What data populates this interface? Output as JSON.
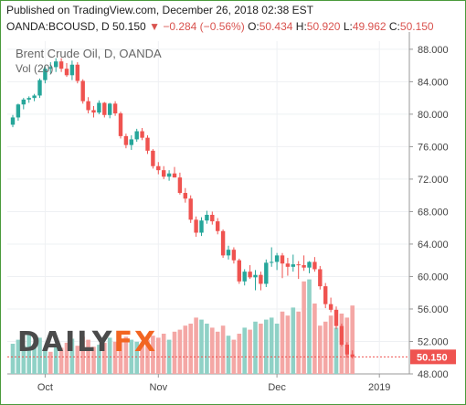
{
  "header": {
    "published": "Published on TradingView.com, December 26, 2018 02:38 EST",
    "symbol": "OANDA:BCOUSD, D",
    "last": "50.150",
    "arrow_icon": "down-triangle-icon",
    "change": "−0.284 (−0.56%)",
    "o_label": "O:",
    "o_value": "50.434",
    "h_label": "H:",
    "h_value": "50.920",
    "l_label": "L:",
    "l_value": "49.962",
    "c_label": "C:",
    "c_value": "50.150"
  },
  "legend": {
    "series_title": "Brent Crude Oil, D, OANDA",
    "volume_label": "Vol (20)"
  },
  "logo": {
    "part1": "DAILY",
    "part2": "FX"
  },
  "colors": {
    "up": "#26a69a",
    "down": "#ef5350",
    "vol_up": "#8fd1c6",
    "vol_down": "#f4a7a5",
    "border": "#4a9a3c",
    "price_tag": "#ef5350"
  },
  "chart_data": {
    "type": "candlestick",
    "title": "Brent Crude Oil, D, OANDA",
    "ylim": [
      48,
      89
    ],
    "y_ticks": [
      "88.000",
      "84.000",
      "80.000",
      "76.000",
      "72.000",
      "68.000",
      "64.000",
      "60.000",
      "56.000",
      "52.000",
      "48.000"
    ],
    "x_ticks": [
      "Oct",
      "Nov",
      "Dec",
      "2019"
    ],
    "last_price_label": "50.150",
    "candles": [
      [
        78.7,
        79.9,
        78.4,
        79.6
      ],
      [
        79.6,
        81.3,
        79.2,
        81.2
      ],
      [
        81.2,
        82.0,
        80.6,
        81.8
      ],
      [
        81.8,
        82.2,
        81.4,
        82.0
      ],
      [
        82.0,
        82.5,
        81.6,
        82.3
      ],
      [
        82.3,
        84.4,
        82.0,
        84.2
      ],
      [
        84.2,
        85.9,
        83.8,
        85.6
      ],
      [
        85.6,
        86.4,
        85.0,
        85.8
      ],
      [
        85.8,
        86.9,
        85.2,
        86.5
      ],
      [
        86.5,
        86.9,
        85.2,
        85.6
      ],
      [
        85.6,
        86.3,
        84.6,
        84.8
      ],
      [
        84.8,
        86.6,
        84.2,
        86.1
      ],
      [
        86.1,
        86.4,
        83.8,
        84.1
      ],
      [
        84.1,
        84.3,
        81.3,
        81.6
      ],
      [
        81.6,
        82.1,
        80.1,
        80.5
      ],
      [
        80.5,
        81.0,
        79.6,
        80.2
      ],
      [
        80.2,
        81.7,
        80.0,
        81.4
      ],
      [
        81.4,
        81.5,
        79.6,
        79.9
      ],
      [
        79.9,
        81.4,
        79.5,
        81.3
      ],
      [
        81.3,
        81.6,
        79.8,
        80.1
      ],
      [
        80.1,
        80.3,
        77.0,
        77.3
      ],
      [
        77.3,
        77.6,
        75.8,
        76.2
      ],
      [
        76.2,
        77.4,
        75.6,
        76.9
      ],
      [
        76.9,
        78.2,
        76.6,
        77.9
      ],
      [
        77.9,
        78.3,
        76.8,
        77.1
      ],
      [
        77.1,
        77.4,
        75.1,
        75.5
      ],
      [
        75.5,
        75.7,
        73.3,
        73.6
      ],
      [
        73.6,
        74.1,
        72.6,
        73.1
      ],
      [
        73.1,
        73.6,
        72.0,
        72.3
      ],
      [
        72.3,
        73.1,
        71.8,
        72.7
      ],
      [
        72.7,
        73.5,
        72.2,
        72.2
      ],
      [
        72.2,
        72.8,
        70.1,
        70.3
      ],
      [
        70.3,
        70.9,
        69.1,
        69.6
      ],
      [
        69.6,
        70.0,
        66.6,
        67.0
      ],
      [
        67.0,
        67.4,
        64.9,
        65.4
      ],
      [
        65.4,
        67.3,
        65.0,
        66.9
      ],
      [
        66.9,
        68.1,
        66.5,
        67.6
      ],
      [
        67.6,
        68.0,
        66.4,
        66.8
      ],
      [
        66.8,
        67.2,
        65.2,
        65.6
      ],
      [
        65.6,
        65.8,
        62.3,
        62.6
      ],
      [
        62.6,
        63.8,
        62.1,
        63.3
      ],
      [
        63.3,
        63.6,
        61.6,
        62.0
      ],
      [
        62.0,
        62.2,
        59.1,
        59.4
      ],
      [
        59.4,
        60.9,
        58.9,
        60.6
      ],
      [
        60.6,
        61.4,
        59.7,
        59.9
      ],
      [
        59.9,
        60.8,
        58.3,
        60.2
      ],
      [
        60.2,
        60.6,
        58.3,
        59.1
      ],
      [
        59.1,
        62.1,
        58.7,
        61.7
      ],
      [
        61.7,
        63.6,
        61.2,
        61.8
      ],
      [
        61.8,
        62.9,
        60.8,
        62.6
      ],
      [
        62.6,
        62.9,
        59.8,
        61.6
      ],
      [
        61.6,
        62.3,
        60.1,
        61.2
      ],
      [
        61.2,
        62.7,
        60.6,
        61.5
      ],
      [
        61.5,
        61.9,
        59.7,
        61.4
      ],
      [
        61.4,
        62.6,
        60.7,
        61.1
      ],
      [
        61.1,
        61.9,
        60.4,
        61.8
      ],
      [
        61.8,
        62.4,
        60.6,
        60.9
      ],
      [
        60.9,
        61.3,
        58.4,
        58.8
      ],
      [
        58.8,
        59.2,
        56.1,
        56.6
      ],
      [
        56.6,
        57.4,
        55.6,
        55.9
      ],
      [
        55.9,
        56.3,
        53.5,
        53.9
      ],
      [
        53.9,
        54.2,
        51.4,
        51.6
      ],
      [
        51.6,
        51.9,
        50.0,
        50.4
      ],
      [
        50.4,
        50.9,
        49.9,
        50.1
      ]
    ],
    "volume": [
      {
        "v": 30,
        "up": true
      },
      {
        "v": 34,
        "up": true
      },
      {
        "v": 28,
        "up": true
      },
      {
        "v": 40,
        "up": true
      },
      {
        "v": 30,
        "up": true
      },
      {
        "v": 36,
        "up": true
      },
      {
        "v": 25,
        "up": true
      },
      {
        "v": 22,
        "up": false
      },
      {
        "v": 30,
        "up": true
      },
      {
        "v": 26,
        "up": false
      },
      {
        "v": 31,
        "up": false
      },
      {
        "v": 35,
        "up": true
      },
      {
        "v": 28,
        "up": false
      },
      {
        "v": 37,
        "up": false
      },
      {
        "v": 34,
        "up": false
      },
      {
        "v": 27,
        "up": false
      },
      {
        "v": 29,
        "up": true
      },
      {
        "v": 31,
        "up": false
      },
      {
        "v": 36,
        "up": true
      },
      {
        "v": 32,
        "up": false
      },
      {
        "v": 34,
        "up": false
      },
      {
        "v": 37,
        "up": false
      },
      {
        "v": 34,
        "up": true
      },
      {
        "v": 32,
        "up": true
      },
      {
        "v": 30,
        "up": false
      },
      {
        "v": 34,
        "up": false
      },
      {
        "v": 38,
        "up": false
      },
      {
        "v": 36,
        "up": false
      },
      {
        "v": 40,
        "up": false
      },
      {
        "v": 34,
        "up": true
      },
      {
        "v": 42,
        "up": false
      },
      {
        "v": 44,
        "up": false
      },
      {
        "v": 48,
        "up": false
      },
      {
        "v": 50,
        "up": false
      },
      {
        "v": 56,
        "up": false
      },
      {
        "v": 54,
        "up": true
      },
      {
        "v": 50,
        "up": true
      },
      {
        "v": 46,
        "up": false
      },
      {
        "v": 42,
        "up": false
      },
      {
        "v": 48,
        "up": false
      },
      {
        "v": 38,
        "up": true
      },
      {
        "v": 34,
        "up": false
      },
      {
        "v": 40,
        "up": false
      },
      {
        "v": 46,
        "up": true
      },
      {
        "v": 44,
        "up": false
      },
      {
        "v": 52,
        "up": true
      },
      {
        "v": 50,
        "up": false
      },
      {
        "v": 54,
        "up": true
      },
      {
        "v": 56,
        "up": true
      },
      {
        "v": 50,
        "up": true
      },
      {
        "v": 62,
        "up": false
      },
      {
        "v": 58,
        "up": false
      },
      {
        "v": 66,
        "up": true
      },
      {
        "v": 62,
        "up": false
      },
      {
        "v": 92,
        "up": false
      },
      {
        "v": 94,
        "up": true
      },
      {
        "v": 70,
        "up": false
      },
      {
        "v": 48,
        "up": false
      },
      {
        "v": 52,
        "up": false
      },
      {
        "v": 58,
        "up": false
      },
      {
        "v": 46,
        "up": true
      },
      {
        "v": 60,
        "up": false
      },
      {
        "v": 56,
        "up": false
      },
      {
        "v": 68,
        "up": false
      }
    ]
  }
}
